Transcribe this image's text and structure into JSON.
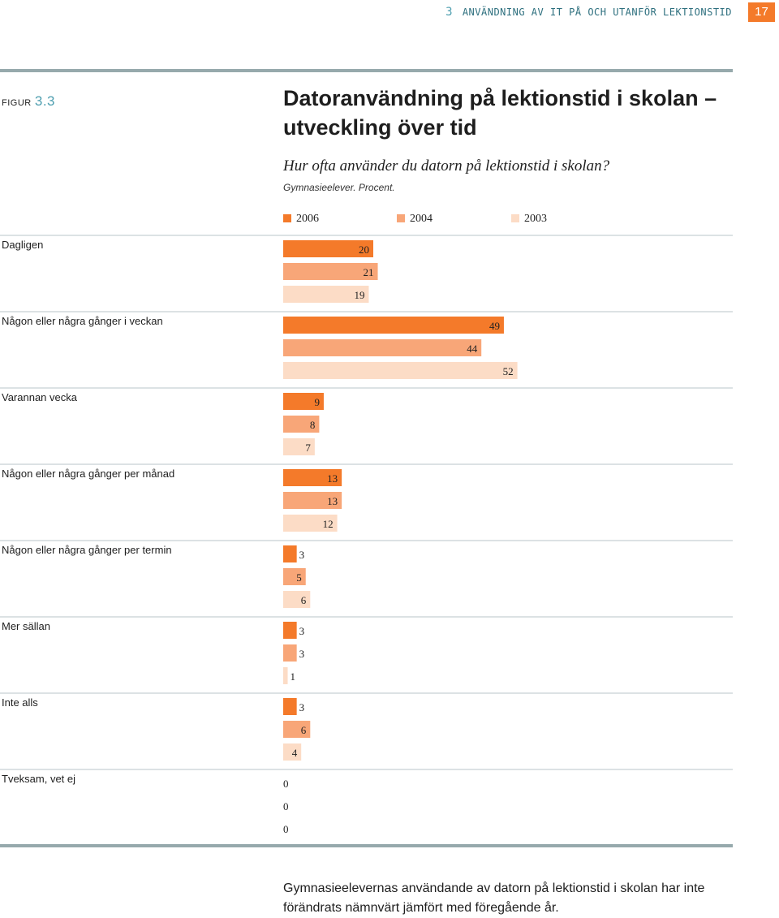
{
  "header": {
    "chapter_number": "3",
    "chapter_title": "Användning av IT på och utanför lektionstid",
    "page_number": "17"
  },
  "figure": {
    "label_prefix": "FIGUR",
    "label_number": "3.3"
  },
  "caption": "Gymnasieelevernas användande av datorn på lektionstid i skolan har inte förändrats nämnvärt jämfört med föregående år.",
  "colors": {
    "series_2006": "#f47a2a",
    "series_2004": "#f8a678",
    "series_2003": "#fcdcc6",
    "rule": "#96a9ac",
    "accent": "#4f9fb0"
  },
  "chart_data": {
    "type": "bar",
    "orientation": "horizontal",
    "title": "Datoranvändning på lektionstid i skolan – utveckling över tid",
    "subtitle": "Hur ofta använder du datorn på lektionstid i skolan?",
    "note": "Gymnasieelever. Procent.",
    "categories": [
      "Dagligen",
      "Någon eller några gånger i veckan",
      "Varannan vecka",
      "Någon eller några gånger per månad",
      "Någon eller några gånger per termin",
      "Mer sällan",
      "Inte alls",
      "Tveksam, vet ej"
    ],
    "series": [
      {
        "name": "2006",
        "values": [
          20,
          49,
          9,
          13,
          3,
          3,
          3,
          0
        ]
      },
      {
        "name": "2004",
        "values": [
          21,
          44,
          8,
          13,
          5,
          3,
          6,
          0
        ]
      },
      {
        "name": "2003",
        "values": [
          19,
          52,
          7,
          12,
          6,
          1,
          4,
          0
        ]
      }
    ],
    "xlim": [
      0,
      100
    ],
    "legend": "top"
  }
}
